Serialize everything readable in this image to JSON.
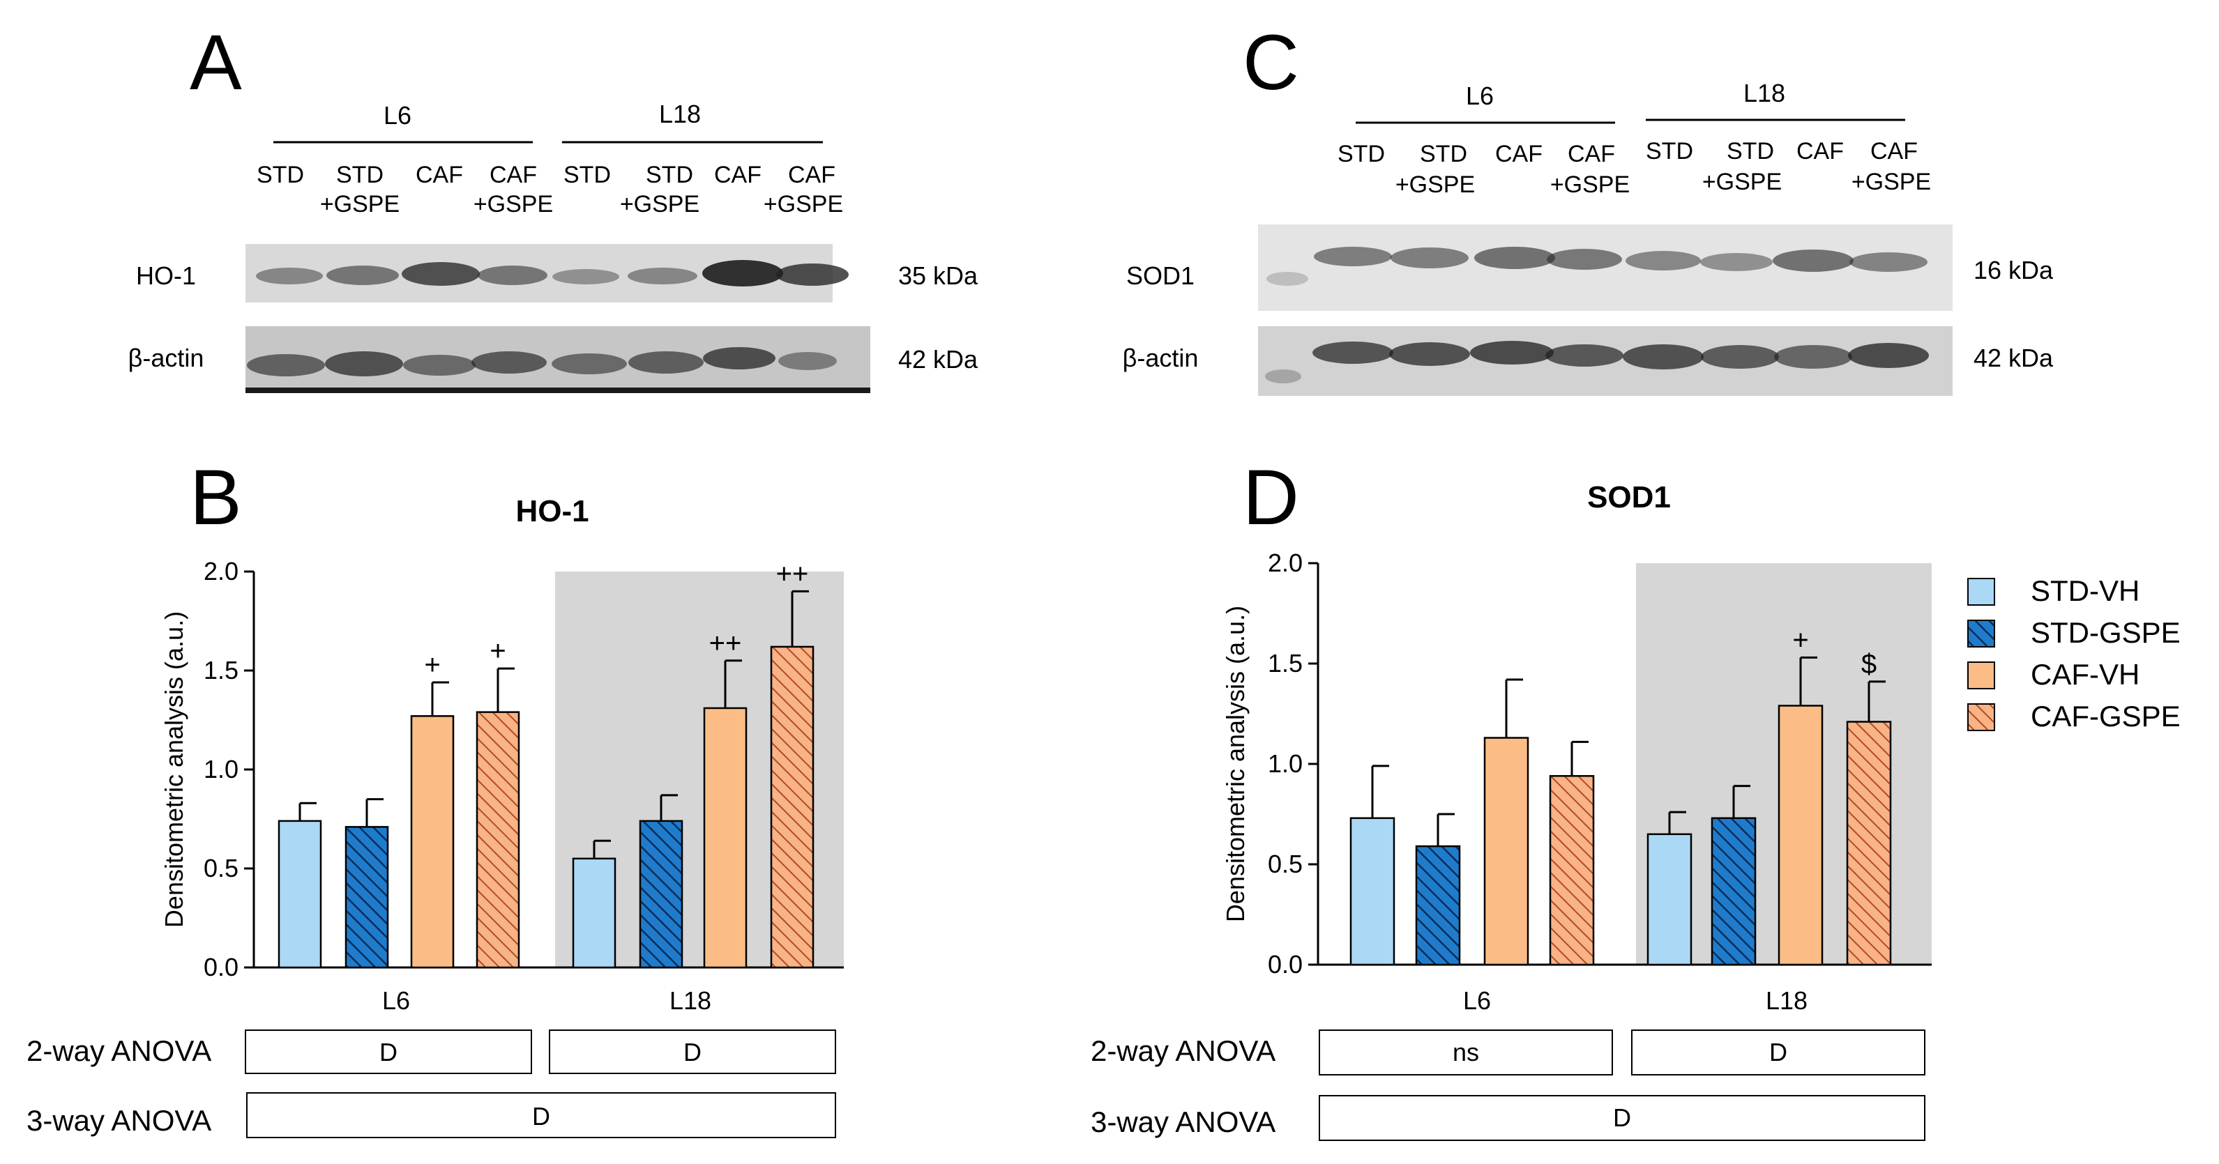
{
  "panel_letters": {
    "a": "A",
    "b": "B",
    "c": "C",
    "d": "D"
  },
  "blots": [
    {
      "groups": [
        "L6",
        "L18"
      ],
      "lanes": [
        [
          "STD",
          ""
        ],
        [
          "STD",
          "+GSPE"
        ],
        [
          "CAF",
          ""
        ],
        [
          "CAF",
          "+GSPE"
        ],
        [
          "STD",
          ""
        ],
        [
          "STD",
          "+GSPE"
        ],
        [
          "CAF",
          ""
        ],
        [
          "CAF",
          "+GSPE"
        ]
      ],
      "rows": [
        {
          "label": "HO-1",
          "kda": "35 kDa"
        },
        {
          "label": "β-actin",
          "kda": "42 kDa"
        }
      ]
    },
    {
      "groups": [
        "L6",
        "L18"
      ],
      "lanes": [
        [
          "STD",
          ""
        ],
        [
          "STD",
          "+GSPE"
        ],
        [
          "CAF",
          ""
        ],
        [
          "CAF",
          "+GSPE"
        ],
        [
          "STD",
          ""
        ],
        [
          "STD",
          "+GSPE"
        ],
        [
          "CAF",
          ""
        ],
        [
          "CAF",
          "+GSPE"
        ]
      ],
      "rows": [
        {
          "label": "SOD1",
          "kda": "16 kDa"
        },
        {
          "label": "β-actin",
          "kda": "42 kDa"
        }
      ]
    }
  ],
  "legend": [
    {
      "label": "STD-VH",
      "color": "#aad8f5",
      "hatch": false
    },
    {
      "label": "STD-GSPE",
      "color": "#1f7ccd",
      "hatch": true
    },
    {
      "label": "CAF-VH",
      "color": "#fbbd85",
      "hatch": false
    },
    {
      "label": "CAF-GSPE",
      "color": "#f5a67a",
      "hatch": true
    }
  ],
  "anova": {
    "two_way_label": "2-way ANOVA",
    "three_way_label": "3-way ANOVA"
  },
  "chart_data": [
    {
      "type": "bar",
      "title": "HO-1",
      "ylabel": "Densitometric analysis (a.u.)",
      "ylim": [
        0,
        2.0
      ],
      "yticks": [
        "0.0",
        "0.5",
        "1.0",
        "1.5",
        "2.0"
      ],
      "categories": [
        "L6",
        "L18"
      ],
      "shaded_category": "L18",
      "series": [
        {
          "name": "STD-VH",
          "values": [
            0.74,
            0.55
          ],
          "errors": [
            0.09,
            0.09
          ],
          "marks": [
            "",
            ""
          ]
        },
        {
          "name": "STD-GSPE",
          "values": [
            0.71,
            0.74
          ],
          "errors": [
            0.14,
            0.13
          ],
          "marks": [
            "",
            ""
          ]
        },
        {
          "name": "CAF-VH",
          "values": [
            1.27,
            1.31
          ],
          "errors": [
            0.17,
            0.24
          ],
          "marks": [
            "+",
            "++"
          ]
        },
        {
          "name": "CAF-GSPE",
          "values": [
            1.29,
            1.62
          ],
          "errors": [
            0.22,
            0.28
          ],
          "marks": [
            "+",
            "++"
          ]
        }
      ],
      "anova_2way": [
        "D",
        "D"
      ],
      "anova_3way": "D"
    },
    {
      "type": "bar",
      "title": "SOD1",
      "ylabel": "Densitometric analysis (a.u.)",
      "ylim": [
        0,
        2.0
      ],
      "yticks": [
        "0.0",
        "0.5",
        "1.0",
        "1.5",
        "2.0"
      ],
      "categories": [
        "L6",
        "L18"
      ],
      "shaded_category": "L18",
      "series": [
        {
          "name": "STD-VH",
          "values": [
            0.73,
            0.65
          ],
          "errors": [
            0.26,
            0.11
          ],
          "marks": [
            "",
            ""
          ]
        },
        {
          "name": "STD-GSPE",
          "values": [
            0.59,
            0.73
          ],
          "errors": [
            0.16,
            0.16
          ],
          "marks": [
            "",
            ""
          ]
        },
        {
          "name": "CAF-VH",
          "values": [
            1.13,
            1.29
          ],
          "errors": [
            0.29,
            0.24
          ],
          "marks": [
            "",
            "+"
          ]
        },
        {
          "name": "CAF-GSPE",
          "values": [
            0.94,
            1.21
          ],
          "errors": [
            0.17,
            0.2
          ],
          "marks": [
            "",
            "$"
          ]
        }
      ],
      "anova_2way": [
        "ns",
        "D"
      ],
      "anova_3way": "D"
    }
  ]
}
